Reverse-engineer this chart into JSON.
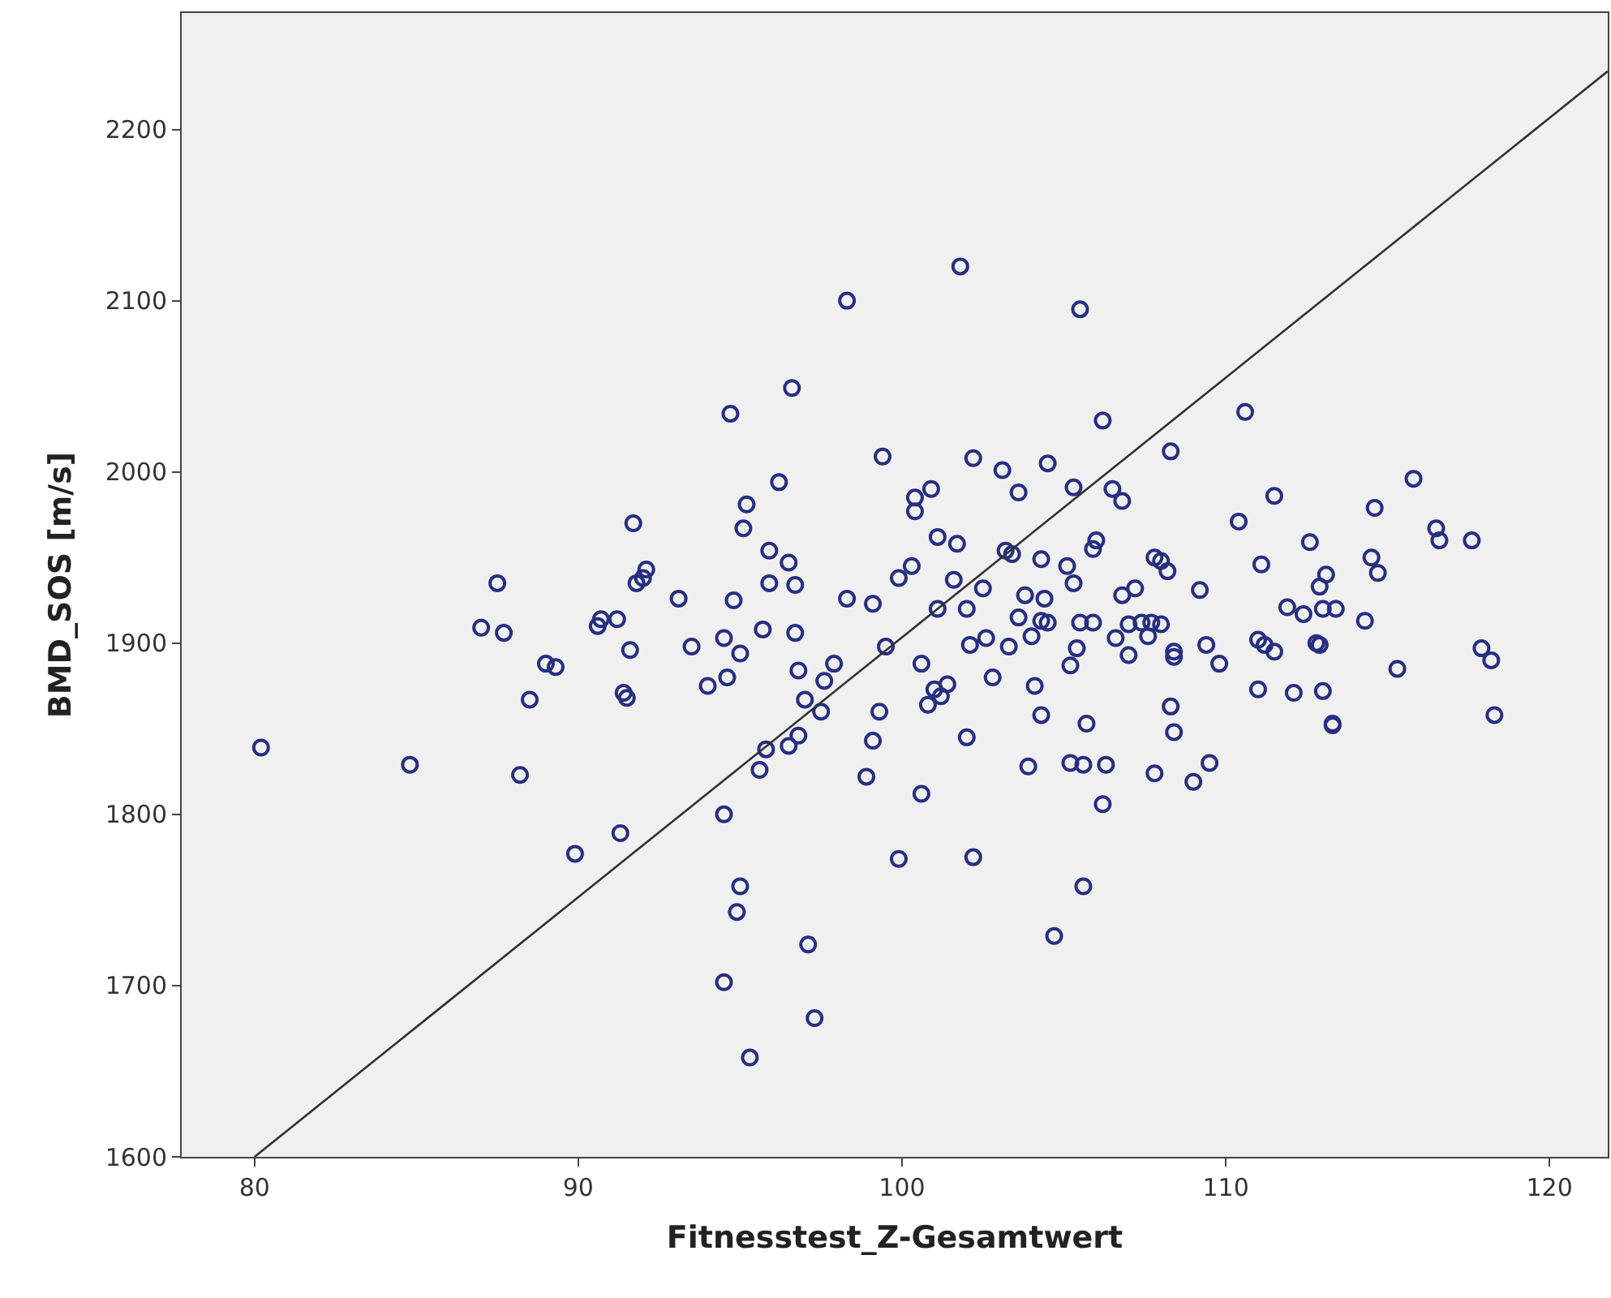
{
  "chart_data": {
    "type": "scatter",
    "xlabel": "Fitnesstest_Z-Gesamtwert",
    "ylabel": "BMD_SOS [m/s]",
    "xlim": [
      77.75,
      121.8
    ],
    "xticks": [
      80,
      90,
      100,
      110,
      120
    ],
    "ylim": [
      1600,
      2268
    ],
    "yticks": [
      1600,
      1700,
      1800,
      1900,
      2000,
      2100,
      2200
    ],
    "grid": false,
    "legend": false,
    "series": [
      {
        "marker": "circle",
        "color": "#262f80",
        "x": [
          80.2,
          84.8,
          87,
          87.5,
          87.7,
          88.2,
          88.5,
          89,
          89.3,
          89.9,
          90.6,
          90.7,
          91.2,
          91.3,
          91.4,
          91.5,
          91.6,
          91.7,
          91.8,
          92,
          92.1,
          93.1,
          93.5,
          94,
          94.5,
          94.5,
          94.5,
          94.6,
          94.7,
          94.8,
          94.9,
          95,
          95,
          95.1,
          95.2,
          95.3,
          95.6,
          95.7,
          95.8,
          95.9,
          95.9,
          96.2,
          96.5,
          96.5,
          96.6,
          96.7,
          96.7,
          96.8,
          96.8,
          97,
          97.1,
          97.3,
          97.5,
          97.6,
          97.9,
          98.3,
          98.3,
          98.9,
          99.1,
          99.1,
          99.3,
          99.4,
          99.5,
          99.9,
          99.9,
          100.3,
          100.4,
          100.4,
          100.6,
          100.6,
          100.8,
          100.9,
          101,
          101.1,
          101.1,
          101.2,
          101.4,
          101.6,
          101.7,
          101.8,
          102,
          102,
          102.1,
          102.2,
          102.2,
          102.5,
          102.6,
          102.8,
          103.1,
          103.2,
          103.3,
          103.4,
          103.6,
          103.6,
          103.8,
          103.9,
          104,
          104.1,
          104.3,
          104.3,
          104.3,
          104.4,
          104.5,
          104.5,
          104.7,
          105.1,
          105.2,
          105.2,
          105.3,
          105.3,
          105.4,
          105.5,
          105.5,
          105.6,
          105.6,
          105.7,
          105.9,
          105.9,
          106,
          106.2,
          106.3,
          106.2,
          106.5,
          106.6,
          106.8,
          106.8,
          107,
          107,
          107.2,
          107.4,
          107.6,
          107.7,
          107.8,
          107.8,
          108,
          108,
          108.2,
          108.3,
          108.3,
          108.4,
          108.4,
          108.4,
          109,
          109.2,
          109.4,
          109.5,
          109.8,
          110.4,
          110.6,
          111,
          111,
          111.1,
          111.2,
          111.5,
          111.5,
          111.9,
          112.1,
          112.4,
          112.6,
          112.8,
          112.9,
          112.9,
          113,
          113.1,
          113,
          113.3,
          113.3,
          113.4,
          114.3,
          114.5,
          114.6,
          114.7,
          115.3,
          115.8,
          116.5,
          116.6,
          117.6,
          117.9,
          118.2,
          118.3
        ],
        "values": [
          1839,
          1829,
          1909,
          1935,
          1906,
          1823,
          1867,
          1888,
          1886,
          1777,
          1910,
          1914,
          1914,
          1789,
          1871,
          1868,
          1896,
          1970,
          1935,
          1938,
          1943,
          1926,
          1898,
          1875,
          1903,
          1800,
          1702,
          1880,
          2034,
          1925,
          1743,
          1894,
          1758,
          1967,
          1981,
          1658,
          1826,
          1908,
          1838,
          1935,
          1954,
          1994,
          1947,
          1840,
          2049,
          1934,
          1906,
          1884,
          1846,
          1867,
          1724,
          1681,
          1860,
          1878,
          1888,
          2100,
          1926,
          1822,
          1923,
          1843,
          1860,
          2009,
          1898,
          1938,
          1774,
          1945,
          1977,
          1985,
          1888,
          1812,
          1864,
          1990,
          1873,
          1962,
          1920,
          1869,
          1876,
          1937,
          1958,
          2120,
          1920,
          1845,
          1899,
          2008,
          1775,
          1932,
          1903,
          1880,
          2001,
          1954,
          1898,
          1952,
          1988,
          1915,
          1928,
          1828,
          1904,
          1875,
          1949,
          1913,
          1858,
          1926,
          2005,
          1912,
          1729,
          1945,
          1830,
          1887,
          1991,
          1935,
          1897,
          2095,
          1912,
          1758,
          1829,
          1853,
          1912,
          1955,
          1960,
          2030,
          1829,
          1806,
          1990,
          1903,
          1983,
          1928,
          1911,
          1893,
          1932,
          1912,
          1904,
          1912,
          1824,
          1950,
          1948,
          1911,
          1942,
          2012,
          1863,
          1892,
          1895,
          1848,
          1819,
          1931,
          1899,
          1830,
          1888,
          1971,
          2035,
          1902,
          1873,
          1946,
          1899,
          1895,
          1986,
          1921,
          1871,
          1917,
          1959,
          1900,
          1899,
          1933,
          1920,
          1940,
          1872,
          1852,
          1853,
          1920,
          1913,
          1950,
          1979,
          1941,
          1885,
          1996,
          1967,
          1960,
          1960,
          1897,
          1890,
          1858
        ]
      },
      {
        "type": "line",
        "marker": "none",
        "color": "#303030",
        "x": [
          80,
          121.8
        ],
        "values": [
          1600,
          2234
        ]
      }
    ]
  }
}
